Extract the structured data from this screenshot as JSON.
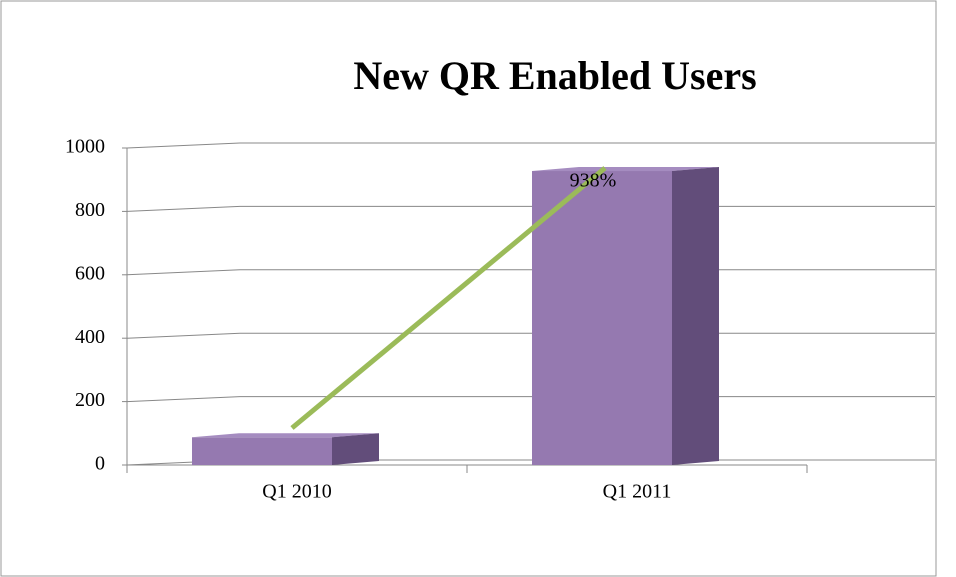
{
  "chart_data": {
    "type": "bar3d",
    "title": "New QR Enabled Users",
    "categories": [
      "Q1 2010",
      "Q1 2011"
    ],
    "values": [
      100,
      940
    ],
    "color": "#9579b0",
    "annotation": "938%",
    "ylim": [
      0,
      1000
    ],
    "yticks": [
      0,
      200,
      400,
      600,
      800,
      1000
    ],
    "grid": true
  }
}
